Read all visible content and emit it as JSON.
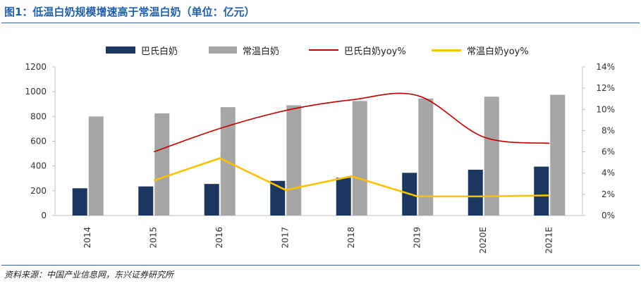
{
  "figure_title": "图1：低温白奶规模增速高于常温白奶（单位：亿元）",
  "source_note": "资料来源：中国产业信息网，东兴证券研究所",
  "colors": {
    "title": "#1f5fa8",
    "pasteurized_bar": "#1b3760",
    "ambient_bar": "#a6a6a6",
    "pasteurized_line": "#c00000",
    "ambient_line": "#ffc000",
    "axis": "#bfbfbf"
  },
  "chart_data": {
    "type": "bar",
    "categories": [
      "2014",
      "2015",
      "2016",
      "2017",
      "2018",
      "2019",
      "2020E",
      "2021E"
    ],
    "series": [
      {
        "name": "巴氏白奶",
        "kind": "bar",
        "axis": "left",
        "values": [
          220,
          235,
          255,
          280,
          305,
          345,
          370,
          395
        ]
      },
      {
        "name": "常温白奶",
        "kind": "bar",
        "axis": "left",
        "values": [
          800,
          825,
          875,
          890,
          925,
          945,
          960,
          975
        ]
      },
      {
        "name": "巴氏白奶yoy%",
        "kind": "line",
        "axis": "right",
        "smooth": true,
        "values": [
          null,
          6.0,
          8.2,
          9.9,
          10.9,
          11.3,
          7.4,
          6.8
        ]
      },
      {
        "name": "常温白奶yoy%",
        "kind": "line",
        "axis": "right",
        "smooth": false,
        "values": [
          null,
          3.3,
          5.4,
          2.4,
          3.7,
          1.8,
          1.8,
          1.9
        ]
      }
    ],
    "left_axis": {
      "ylim": [
        0,
        1200
      ],
      "ticks": [
        "0",
        "200",
        "400",
        "600",
        "800",
        "1000",
        "1200"
      ]
    },
    "right_axis": {
      "ylim": [
        0,
        14
      ],
      "ticks": [
        "0%",
        "2%",
        "4%",
        "6%",
        "8%",
        "10%",
        "12%",
        "14%"
      ]
    },
    "legend_position": "top",
    "grid": false
  }
}
